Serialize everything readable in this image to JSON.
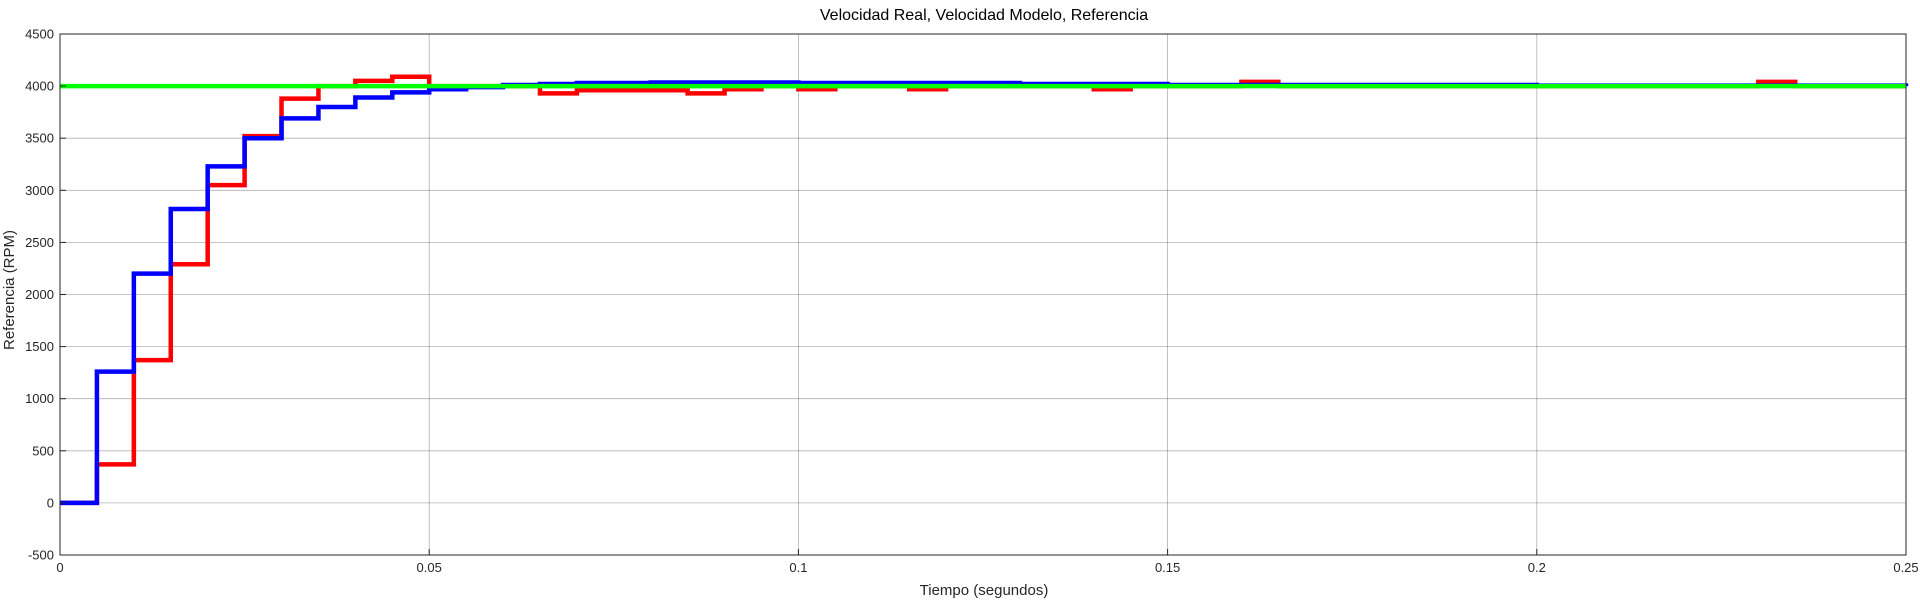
{
  "chart_data": {
    "type": "line",
    "title": "Velocidad Real, Velocidad Modelo, Referencia",
    "xlabel": "Tiempo (segundos)",
    "ylabel": "Referencia (RPM)",
    "xlim": [
      0,
      0.25
    ],
    "ylim": [
      -500,
      4500
    ],
    "xticks": [
      0,
      0.05,
      0.1,
      0.15,
      0.2,
      0.25
    ],
    "xtick_labels": [
      "0",
      "0.05",
      "0.1",
      "0.15",
      "0.2",
      "0.25"
    ],
    "yticks": [
      -500,
      0,
      500,
      1000,
      1500,
      2000,
      2500,
      3000,
      3500,
      4000,
      4500
    ],
    "ytick_labels": [
      "-500",
      "0",
      "500",
      "1000",
      "1500",
      "2000",
      "2500",
      "3000",
      "3500",
      "4000",
      "4500"
    ],
    "grid": true,
    "step": true,
    "series": [
      {
        "color": "#ff0000",
        "x": [
          0,
          0.005,
          0.01,
          0.015,
          0.02,
          0.025,
          0.03,
          0.035,
          0.04,
          0.045,
          0.05,
          0.055,
          0.06,
          0.065,
          0.07,
          0.075,
          0.08,
          0.085,
          0.09,
          0.095,
          0.1,
          0.105,
          0.11,
          0.115,
          0.12,
          0.125,
          0.14,
          0.145,
          0.16,
          0.165,
          0.23,
          0.235,
          0.25
        ],
        "y": [
          0,
          370,
          1370,
          2290,
          3050,
          3520,
          3880,
          4000,
          4050,
          4090,
          4000,
          4000,
          4000,
          3930,
          3960,
          3960,
          3960,
          3930,
          3970,
          4000,
          3970,
          4000,
          4000,
          3970,
          4000,
          4000,
          3970,
          4000,
          4040,
          4000,
          4040,
          4000,
          4000
        ]
      },
      {
        "color": "#0000ff",
        "x": [
          0,
          0.005,
          0.01,
          0.015,
          0.02,
          0.025,
          0.03,
          0.035,
          0.04,
          0.045,
          0.05,
          0.055,
          0.06,
          0.065,
          0.07,
          0.08,
          0.1,
          0.13,
          0.15,
          0.2,
          0.25
        ],
        "y": [
          0,
          1260,
          2200,
          2820,
          3230,
          3500,
          3690,
          3800,
          3890,
          3940,
          3970,
          3990,
          4010,
          4020,
          4030,
          4035,
          4030,
          4020,
          4010,
          4005,
          4000
        ]
      },
      {
        "color": "#00ff00",
        "x": [
          0,
          0.25
        ],
        "y": [
          4000,
          4000
        ]
      }
    ]
  }
}
